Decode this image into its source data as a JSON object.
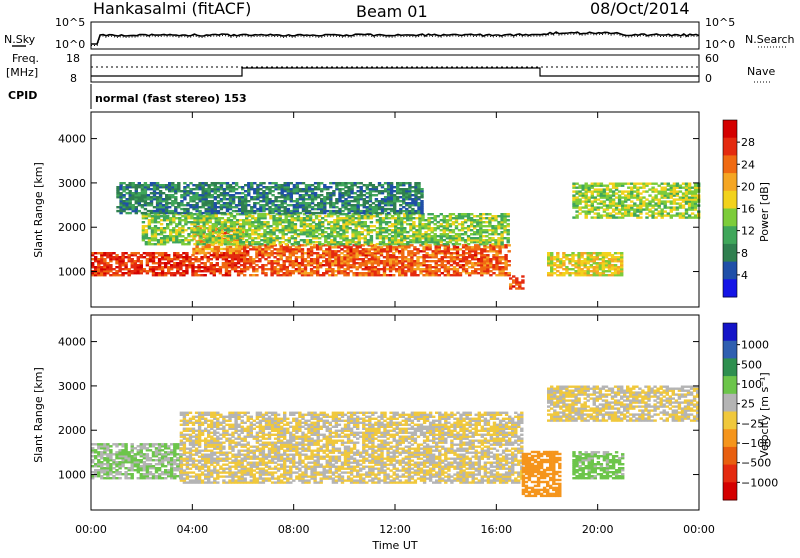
{
  "header": {
    "station": "Hankasalmi (fitACF)",
    "beam": "Beam 01",
    "date": "08/Oct/2014"
  },
  "noise_panel": {
    "left_label": "N.Sky",
    "left_ticks": [
      "10^5",
      "10^0"
    ],
    "right_label": "N.Search",
    "right_ticks": [
      "10^5",
      "10^0"
    ]
  },
  "freq_panel": {
    "left_label_1": "Freq.",
    "left_label_2": "[MHz]",
    "left_ticks": [
      "18",
      "8"
    ],
    "right_label": "Nave",
    "right_ticks": [
      "60",
      "0"
    ]
  },
  "cpid": {
    "label": "CPID",
    "value": "normal (fast stereo) 153"
  },
  "colors": {
    "power_scale": [
      "#1414e6",
      "#1f4fa8",
      "#2f7f4f",
      "#3fa65a",
      "#7ccc3a",
      "#f2d21c",
      "#f5a623",
      "#f06a12",
      "#e42a0f",
      "#d40000"
    ],
    "velocity_scale": [
      "#1414c8",
      "#2f5fb0",
      "#2e8f4f",
      "#6cc54a",
      "#b4b4b4",
      "#f0c83c",
      "#f5951c",
      "#e85f0f",
      "#e42a0f",
      "#d40000"
    ]
  },
  "chart_data": [
    {
      "type": "heatmap",
      "title": "",
      "xlabel": "",
      "ylabel": "Slant Range [km]",
      "yticks": [
        "1000",
        "2000",
        "3000",
        "4000"
      ],
      "ylim": [
        200,
        4600
      ],
      "colorbar": {
        "label": "Power [dB]",
        "ticks": [
          "4",
          "8",
          "12",
          "16",
          "20",
          "24",
          "28"
        ],
        "range": [
          0,
          32
        ]
      },
      "bands": [
        {
          "t": [
            0,
            6
          ],
          "r": [
            900,
            1400
          ],
          "value": 27
        },
        {
          "t": [
            4,
            6
          ],
          "r": [
            1400,
            2000
          ],
          "value": 22
        },
        {
          "t": [
            6,
            16.5
          ],
          "r": [
            900,
            1600
          ],
          "value": 25
        },
        {
          "t": [
            2,
            16.5
          ],
          "r": [
            1600,
            2300
          ],
          "value": 14
        },
        {
          "t": [
            1,
            13
          ],
          "r": [
            2300,
            3000
          ],
          "value": 8
        },
        {
          "t": [
            16.5,
            17
          ],
          "r": [
            600,
            900
          ],
          "value": 26
        },
        {
          "t": [
            18,
            21
          ],
          "r": [
            900,
            1400
          ],
          "value": 18
        },
        {
          "t": [
            19,
            24
          ],
          "r": [
            2200,
            3000
          ],
          "value": 15
        }
      ]
    },
    {
      "type": "heatmap",
      "title": "",
      "xlabel": "Time UT",
      "ylabel": "Slant Range [km]",
      "yticks": [
        "1000",
        "2000",
        "3000",
        "4000"
      ],
      "xticks": [
        "00:00",
        "04:00",
        "08:00",
        "12:00",
        "16:00",
        "20:00",
        "00:00"
      ],
      "xlim": [
        0,
        24
      ],
      "ylim": [
        200,
        4600
      ],
      "colorbar": {
        "label": "Velocity [m s⁻¹]",
        "ticks": [
          "1000",
          "500",
          "100",
          "25",
          "−25",
          "−100",
          "−500",
          "−1000"
        ],
        "range": [
          -1000,
          1000
        ]
      },
      "bands": [
        {
          "t": [
            0,
            3.5
          ],
          "r": [
            900,
            1700
          ],
          "value": 200
        },
        {
          "t": [
            3.5,
            17
          ],
          "r": [
            800,
            2400
          ],
          "value": 0
        },
        {
          "t": [
            17,
            18.5
          ],
          "r": [
            500,
            1500
          ],
          "value": -300
        },
        {
          "t": [
            19,
            21
          ],
          "r": [
            900,
            1500
          ],
          "value": 250
        },
        {
          "t": [
            18,
            24
          ],
          "r": [
            2200,
            3000
          ],
          "value": 0
        }
      ]
    }
  ]
}
